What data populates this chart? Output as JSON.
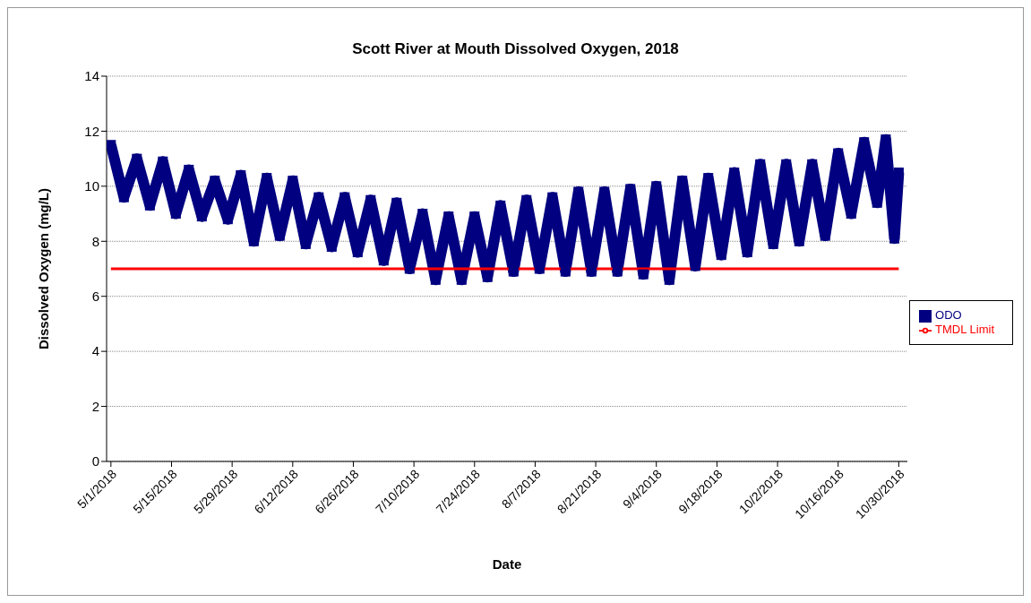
{
  "chart_data": {
    "type": "line",
    "title": "Scott River at Mouth Dissolved Oxygen, 2018",
    "xlabel": "Date",
    "ylabel": "Dissolved Oxygen (mg/L)",
    "x": [
      "2018-05-01",
      "2018-05-04",
      "2018-05-07",
      "2018-05-10",
      "2018-05-13",
      "2018-05-16",
      "2018-05-19",
      "2018-05-22",
      "2018-05-25",
      "2018-05-28",
      "2018-05-31",
      "2018-06-03",
      "2018-06-06",
      "2018-06-09",
      "2018-06-12",
      "2018-06-15",
      "2018-06-18",
      "2018-06-21",
      "2018-06-24",
      "2018-06-27",
      "2018-06-30",
      "2018-07-03",
      "2018-07-06",
      "2018-07-09",
      "2018-07-12",
      "2018-07-15",
      "2018-07-18",
      "2018-07-21",
      "2018-07-24",
      "2018-07-27",
      "2018-07-30",
      "2018-08-02",
      "2018-08-05",
      "2018-08-08",
      "2018-08-11",
      "2018-08-14",
      "2018-08-17",
      "2018-08-20",
      "2018-08-23",
      "2018-08-26",
      "2018-08-29",
      "2018-09-01",
      "2018-09-04",
      "2018-09-07",
      "2018-09-10",
      "2018-09-13",
      "2018-09-16",
      "2018-09-19",
      "2018-09-22",
      "2018-09-25",
      "2018-09-28",
      "2018-10-01",
      "2018-10-04",
      "2018-10-07",
      "2018-10-10",
      "2018-10-13",
      "2018-10-16",
      "2018-10-19",
      "2018-10-22",
      "2018-10-25",
      "2018-10-27",
      "2018-10-29",
      "2018-10-30"
    ],
    "series": [
      {
        "name": "ODO",
        "color": "#000080",
        "marker": "square",
        "values": [
          11.5,
          9.6,
          11.0,
          9.3,
          10.9,
          9.0,
          10.6,
          8.9,
          10.2,
          8.8,
          10.4,
          8.0,
          10.3,
          8.2,
          10.2,
          7.9,
          9.6,
          7.8,
          9.6,
          7.6,
          9.5,
          7.3,
          9.4,
          7.0,
          9.0,
          6.6,
          8.9,
          6.6,
          8.9,
          6.7,
          9.3,
          6.9,
          9.5,
          7.0,
          9.6,
          6.9,
          9.8,
          6.9,
          9.8,
          6.9,
          9.9,
          6.8,
          10.0,
          6.6,
          10.2,
          7.1,
          10.3,
          7.5,
          10.5,
          7.6,
          10.8,
          7.9,
          10.8,
          8.0,
          10.8,
          8.2,
          11.2,
          9.0,
          11.6,
          9.4,
          11.7,
          8.1,
          10.5
        ]
      },
      {
        "name": "TMDL Limit",
        "color": "#ff0000",
        "marker": "none",
        "x": [
          "2018-05-01",
          "2018-10-30"
        ],
        "values": [
          7,
          7
        ]
      }
    ],
    "xlim": [
      "2018-04-30",
      "2018-11-01"
    ],
    "xticks": [
      {
        "value": "2018-05-01",
        "label": "5/1/2018"
      },
      {
        "value": "2018-05-15",
        "label": "5/15/2018"
      },
      {
        "value": "2018-05-29",
        "label": "5/29/2018"
      },
      {
        "value": "2018-06-12",
        "label": "6/12/2018"
      },
      {
        "value": "2018-06-26",
        "label": "6/26/2018"
      },
      {
        "value": "2018-07-10",
        "label": "7/10/2018"
      },
      {
        "value": "2018-07-24",
        "label": "7/24/2018"
      },
      {
        "value": "2018-08-07",
        "label": "8/7/2018"
      },
      {
        "value": "2018-08-21",
        "label": "8/21/2018"
      },
      {
        "value": "2018-09-04",
        "label": "9/4/2018"
      },
      {
        "value": "2018-09-18",
        "label": "9/18/2018"
      },
      {
        "value": "2018-10-02",
        "label": "10/2/2018"
      },
      {
        "value": "2018-10-16",
        "label": "10/16/2018"
      },
      {
        "value": "2018-10-30",
        "label": "10/30/2018"
      }
    ],
    "ylim": [
      0,
      14
    ],
    "yticks": [
      0,
      2,
      4,
      6,
      8,
      10,
      12,
      14
    ],
    "grid": "y",
    "legend": "right"
  }
}
